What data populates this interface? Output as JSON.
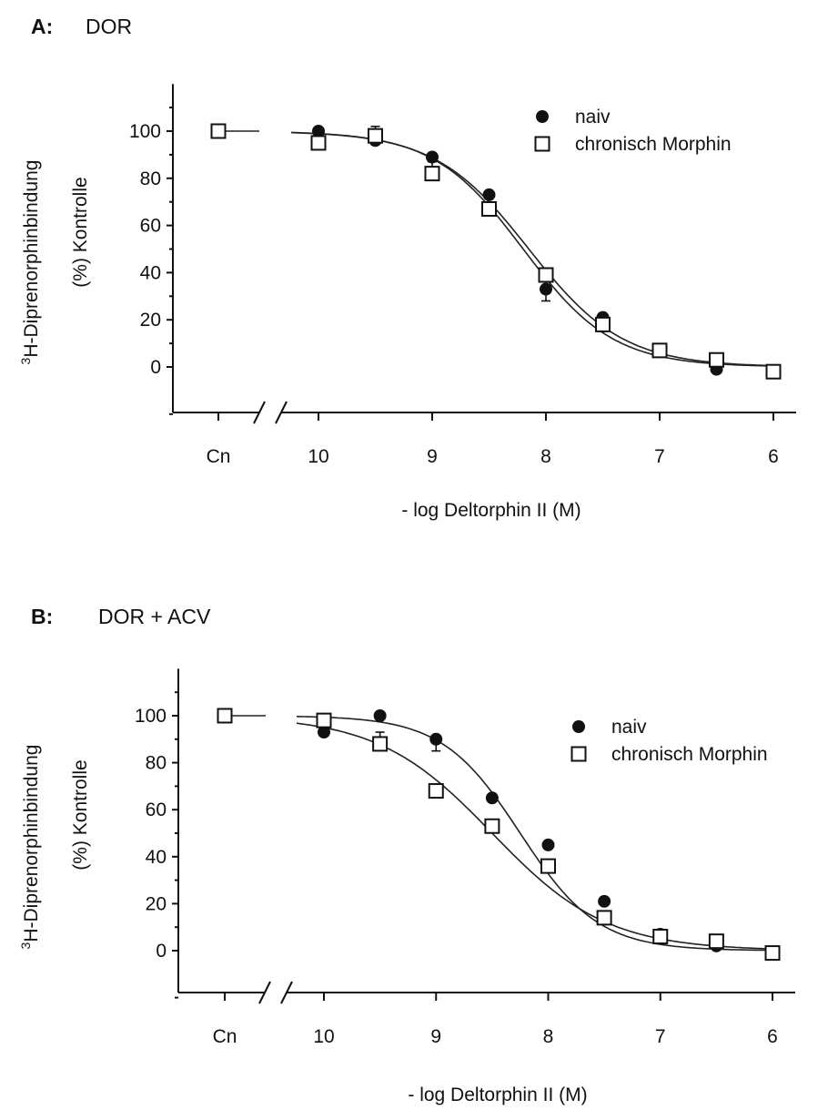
{
  "chart_data": [
    {
      "type": "scatter",
      "panel_label": "A:",
      "title": "DOR",
      "xlabel": "- log Deltorphin II (M)",
      "ylabel_main": "H-Diprenorphinbindung",
      "ylabel_sup": "3",
      "ylabel_sub": "(%) Kontrolle",
      "x_category_label": "Cn",
      "x_ticks": [
        "10",
        "9",
        "8",
        "7",
        "6"
      ],
      "x_tick_values": [
        10,
        9,
        8,
        7,
        6
      ],
      "xlim": [
        6,
        10
      ],
      "y_ticks": [
        "100",
        "80",
        "60",
        "40",
        "20",
        "0"
      ],
      "y_tick_values": [
        100,
        80,
        60,
        40,
        20,
        0
      ],
      "ylim": [
        -20,
        120
      ],
      "broken_x_axis": true,
      "grid": false,
      "legend_position": "top-right",
      "control_value": 100,
      "series": [
        {
          "name": "naiv",
          "marker": "filled-circle",
          "x": [
            10,
            9.5,
            9,
            8.5,
            8,
            7.5,
            7,
            6.5,
            6
          ],
          "y": [
            100,
            96,
            89,
            73,
            33,
            21,
            7,
            -1,
            -2
          ],
          "err": [
            0,
            0,
            0,
            0,
            5,
            6,
            0,
            0,
            0
          ],
          "fit_midpoint": 8.2,
          "fit_slope": 1.1
        },
        {
          "name": "chronisch Morphin",
          "marker": "open-square",
          "x": [
            10,
            9.5,
            9,
            8.5,
            8,
            7.5,
            7,
            6.5,
            6
          ],
          "y": [
            95,
            98,
            82,
            67,
            39,
            18,
            7,
            3,
            -2
          ],
          "err": [
            0,
            4,
            5,
            0,
            0,
            0,
            0,
            0,
            0
          ],
          "fit_midpoint": 8.15,
          "fit_slope": 1.05
        }
      ]
    },
    {
      "type": "scatter",
      "panel_label": "B:",
      "title": "DOR + ACV",
      "xlabel": "- log Deltorphin II (M)",
      "ylabel_main": "H-Diprenorphinbindung",
      "ylabel_sup": "3",
      "ylabel_sub": "(%) Kontrolle",
      "x_category_label": "Cn",
      "x_ticks": [
        "10",
        "9",
        "8",
        "7",
        "6"
      ],
      "x_tick_values": [
        10,
        9,
        8,
        7,
        6
      ],
      "xlim": [
        6,
        10
      ],
      "y_ticks": [
        "100",
        "80",
        "60",
        "40",
        "20",
        "0"
      ],
      "y_tick_values": [
        100,
        80,
        60,
        40,
        20,
        0
      ],
      "ylim": [
        -20,
        120
      ],
      "broken_x_axis": true,
      "grid": false,
      "legend_position": "top-right",
      "control_value": 100,
      "series": [
        {
          "name": "naiv",
          "marker": "filled-circle",
          "x": [
            10,
            9.5,
            9,
            8.5,
            8,
            7.5,
            7,
            6.5,
            6
          ],
          "y": [
            93,
            100,
            90,
            65,
            45,
            21,
            7,
            2,
            -1
          ],
          "err": [
            0,
            0,
            5,
            0,
            0,
            0,
            0,
            0,
            0
          ],
          "fit_midpoint": 8.25,
          "fit_slope": 1.25
        },
        {
          "name": "chronisch Morphin",
          "marker": "open-square",
          "x": [
            10,
            9.5,
            9,
            8.5,
            8,
            7.5,
            7,
            6.5,
            6
          ],
          "y": [
            98,
            88,
            68,
            53,
            36,
            14,
            6,
            4,
            -1
          ],
          "err": [
            0,
            5,
            0,
            0,
            0,
            0,
            0,
            0,
            0
          ],
          "fit_midpoint": 8.5,
          "fit_slope": 0.85
        }
      ]
    }
  ]
}
